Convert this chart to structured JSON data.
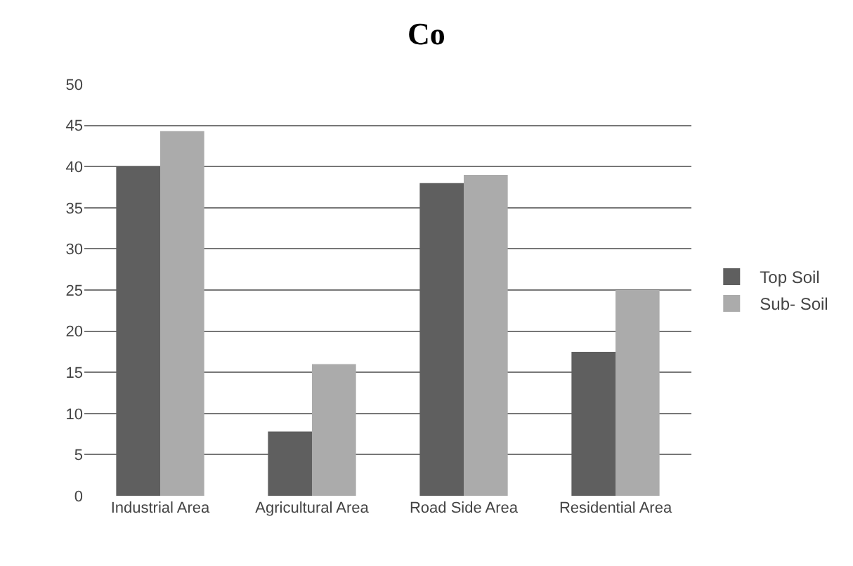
{
  "chart_data": {
    "type": "bar",
    "title": "Co",
    "categories": [
      "Industrial Area",
      "Agricultural Area",
      "Road Side Area",
      "Residential Area"
    ],
    "series": [
      {
        "name": "Top Soil",
        "color": "#5f5f5f",
        "values": [
          40,
          7.8,
          38,
          17.5
        ]
      },
      {
        "name": "Sub- Soil",
        "color": "#ababab",
        "values": [
          44.3,
          16,
          39,
          25
        ]
      }
    ],
    "ylim": [
      0,
      50
    ],
    "yticks": [
      0,
      5,
      10,
      15,
      20,
      25,
      30,
      35,
      40,
      45,
      50
    ],
    "grid": "y",
    "legend": "right"
  }
}
